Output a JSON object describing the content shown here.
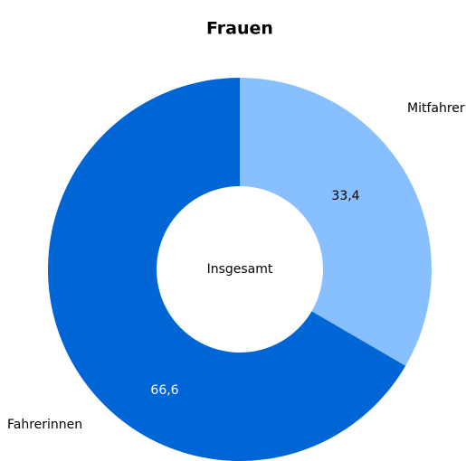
{
  "chart_data": {
    "type": "donut",
    "title": "Frauen",
    "center_label": "Insgesamt",
    "categories": [
      "Mitfahrerinnen",
      "Fahrerinnen"
    ],
    "values": [
      33.4,
      66.6
    ],
    "value_labels": [
      "33,4",
      "66,6"
    ],
    "colors": [
      "#88c0ff",
      "#0066d6"
    ]
  }
}
